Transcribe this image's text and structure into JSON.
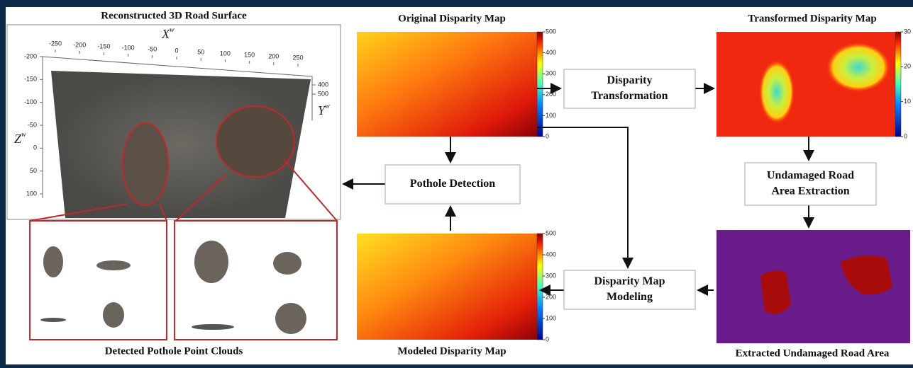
{
  "titles": {
    "surface": "Reconstructed 3D Road Surface",
    "clouds": "Detected Pothole Point Clouds",
    "original": "Original Disparity Map",
    "transformed": "Transformed Disparity Map",
    "modeled": "Modeled Disparity Map",
    "extracted": "Extracted Undamaged Road Area"
  },
  "nodes": [
    {
      "lines": [
        "Disparity",
        "Transformation"
      ]
    },
    {
      "lines": [
        "Pothole Detection"
      ]
    },
    {
      "lines": [
        "Undamaged Road",
        "Area Extraction"
      ]
    },
    {
      "lines": [
        "Disparity Map",
        "Modeling"
      ]
    }
  ],
  "plot3d": {
    "x_axis": {
      "base": "X",
      "sup": "w"
    },
    "y_axis": {
      "base": "Y",
      "sup": "w"
    },
    "z_axis": {
      "base": "Z",
      "sup": "w"
    },
    "xticks": [
      -250,
      -200,
      -150,
      -100,
      -50,
      0,
      50,
      100,
      150,
      200,
      250
    ],
    "zticks": [
      -200,
      -150,
      -100,
      -50,
      0,
      50,
      100
    ],
    "yticks": [
      400,
      500
    ]
  },
  "colorbars": {
    "original": [
      0,
      100,
      200,
      300,
      400,
      500
    ],
    "transformed": [
      0,
      10,
      20,
      30
    ],
    "modeled": [
      0,
      100,
      200,
      300,
      400,
      500
    ]
  }
}
